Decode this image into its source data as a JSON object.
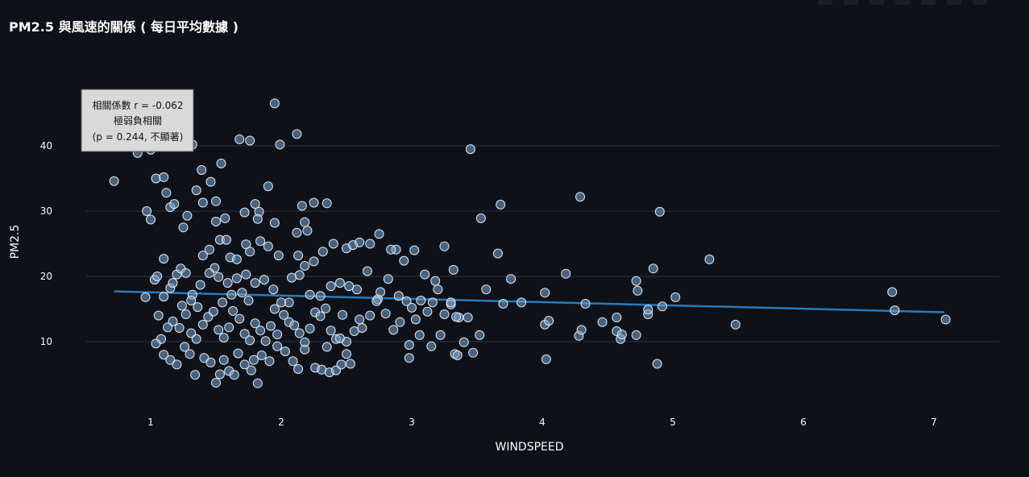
{
  "chart_data": {
    "type": "scatter",
    "title": "PM2.5 與風速的關係 ( 每日平均數據 )",
    "xlabel": "WINDSPEED",
    "ylabel": "PM2.5",
    "xlim": [
      0.7,
      7.35
    ],
    "ylim": [
      1.5,
      49
    ],
    "x_ticks": [
      1,
      2,
      3,
      4,
      5,
      6,
      7
    ],
    "y_ticks": [
      10,
      20,
      30,
      40
    ],
    "grid": "horizontal",
    "annotation": {
      "lines": [
        "相關係數 r = -0.062",
        "極弱負相關",
        "(p = 0.244, 不顯著)"
      ],
      "position": "top-left"
    },
    "trendline": {
      "x": [
        0.72,
        7.08
      ],
      "y": [
        17.7,
        14.5
      ]
    },
    "points": [
      [
        0.72,
        34.6
      ],
      [
        0.97,
        30.0
      ],
      [
        1.0,
        28.7
      ],
      [
        1.04,
        35.0
      ],
      [
        1.1,
        35.2
      ],
      [
        1.0,
        39.4
      ],
      [
        0.9,
        38.9
      ],
      [
        1.15,
        30.6
      ],
      [
        1.12,
        32.8
      ],
      [
        1.18,
        31.1
      ],
      [
        1.25,
        27.5
      ],
      [
        1.28,
        29.3
      ],
      [
        1.35,
        33.2
      ],
      [
        1.39,
        36.3
      ],
      [
        1.46,
        34.5
      ],
      [
        1.54,
        37.3
      ],
      [
        1.5,
        31.5
      ],
      [
        1.4,
        31.3
      ],
      [
        1.32,
        40.2
      ],
      [
        1.68,
        41.0
      ],
      [
        1.76,
        40.8
      ],
      [
        1.9,
        33.8
      ],
      [
        1.95,
        46.5
      ],
      [
        1.99,
        40.2
      ],
      [
        2.12,
        41.8
      ],
      [
        2.16,
        30.8
      ],
      [
        2.25,
        31.3
      ],
      [
        2.35,
        31.2
      ],
      [
        1.8,
        31.1
      ],
      [
        1.83,
        29.9
      ],
      [
        1.72,
        29.8
      ],
      [
        1.82,
        28.8
      ],
      [
        1.5,
        28.4
      ],
      [
        1.57,
        28.9
      ],
      [
        1.95,
        28.2
      ],
      [
        2.18,
        28.3
      ],
      [
        2.2,
        27.0
      ],
      [
        2.12,
        26.7
      ],
      [
        1.1,
        22.7
      ],
      [
        1.03,
        19.5
      ],
      [
        0.96,
        16.8
      ],
      [
        1.06,
        14.0
      ],
      [
        1.1,
        16.9
      ],
      [
        1.15,
        18.2
      ],
      [
        1.17,
        19.0
      ],
      [
        1.2,
        20.3
      ],
      [
        1.23,
        21.2
      ],
      [
        1.27,
        20.5
      ],
      [
        1.32,
        17.2
      ],
      [
        1.36,
        15.3
      ],
      [
        1.4,
        23.2
      ],
      [
        1.45,
        24.1
      ],
      [
        1.49,
        21.3
      ],
      [
        1.53,
        25.6
      ],
      [
        1.58,
        25.6
      ],
      [
        1.61,
        22.9
      ],
      [
        1.66,
        22.6
      ],
      [
        1.73,
        24.9
      ],
      [
        1.76,
        23.8
      ],
      [
        1.84,
        25.4
      ],
      [
        1.9,
        24.6
      ],
      [
        1.98,
        23.2
      ],
      [
        2.06,
        16.0
      ],
      [
        2.13,
        23.2
      ],
      [
        2.18,
        21.6
      ],
      [
        2.25,
        22.3
      ],
      [
        2.32,
        23.8
      ],
      [
        2.4,
        25.0
      ],
      [
        2.5,
        24.3
      ],
      [
        2.55,
        24.8
      ],
      [
        2.6,
        25.2
      ],
      [
        2.68,
        25.0
      ],
      [
        2.75,
        26.5
      ],
      [
        2.66,
        20.8
      ],
      [
        2.58,
        18.0
      ],
      [
        2.52,
        18.5
      ],
      [
        2.45,
        19.0
      ],
      [
        2.38,
        18.5
      ],
      [
        2.3,
        17.0
      ],
      [
        2.22,
        17.2
      ],
      [
        2.14,
        20.2
      ],
      [
        2.08,
        19.8
      ],
      [
        2.0,
        16.0
      ],
      [
        1.94,
        18.0
      ],
      [
        1.87,
        19.5
      ],
      [
        1.8,
        19.0
      ],
      [
        1.73,
        20.3
      ],
      [
        1.66,
        19.7
      ],
      [
        1.59,
        19.0
      ],
      [
        1.52,
        19.9
      ],
      [
        1.45,
        20.5
      ],
      [
        1.38,
        18.7
      ],
      [
        1.31,
        16.3
      ],
      [
        1.24,
        15.5
      ],
      [
        1.17,
        13.1
      ],
      [
        1.13,
        12.2
      ],
      [
        1.08,
        10.4
      ],
      [
        1.04,
        9.7
      ],
      [
        1.1,
        8.0
      ],
      [
        1.15,
        7.2
      ],
      [
        1.2,
        6.5
      ],
      [
        1.26,
        9.2
      ],
      [
        1.3,
        8.1
      ],
      [
        1.34,
        4.9
      ],
      [
        1.41,
        7.5
      ],
      [
        1.46,
        6.8
      ],
      [
        1.5,
        3.7
      ],
      [
        1.53,
        5.0
      ],
      [
        1.56,
        7.2
      ],
      [
        1.6,
        5.5
      ],
      [
        1.64,
        4.9
      ],
      [
        1.67,
        8.2
      ],
      [
        1.72,
        6.5
      ],
      [
        1.77,
        5.6
      ],
      [
        1.79,
        7.2
      ],
      [
        1.82,
        3.6
      ],
      [
        1.85,
        7.9
      ],
      [
        1.91,
        7.0
      ],
      [
        1.97,
        9.3
      ],
      [
        2.03,
        8.5
      ],
      [
        2.09,
        7.0
      ],
      [
        2.13,
        5.8
      ],
      [
        2.18,
        8.8
      ],
      [
        2.26,
        6.0
      ],
      [
        2.31,
        5.7
      ],
      [
        2.37,
        5.3
      ],
      [
        2.42,
        5.6
      ],
      [
        2.46,
        6.5
      ],
      [
        2.5,
        8.1
      ],
      [
        2.53,
        6.6
      ],
      [
        1.22,
        12.1
      ],
      [
        1.27,
        14.2
      ],
      [
        1.31,
        11.3
      ],
      [
        1.35,
        10.4
      ],
      [
        1.4,
        12.6
      ],
      [
        1.44,
        13.8
      ],
      [
        1.48,
        14.6
      ],
      [
        1.52,
        11.8
      ],
      [
        1.56,
        10.6
      ],
      [
        1.6,
        12.2
      ],
      [
        1.63,
        14.7
      ],
      [
        1.68,
        13.5
      ],
      [
        1.72,
        11.2
      ],
      [
        1.76,
        10.2
      ],
      [
        1.8,
        12.8
      ],
      [
        1.84,
        11.7
      ],
      [
        1.88,
        10.1
      ],
      [
        1.92,
        12.4
      ],
      [
        1.97,
        11.1
      ],
      [
        2.02,
        14.1
      ],
      [
        2.06,
        13.0
      ],
      [
        2.1,
        12.5
      ],
      [
        2.14,
        11.3
      ],
      [
        2.18,
        9.9
      ],
      [
        2.22,
        12.0
      ],
      [
        2.26,
        14.5
      ],
      [
        2.3,
        13.9
      ],
      [
        2.34,
        15.1
      ],
      [
        2.38,
        11.7
      ],
      [
        2.42,
        10.4
      ],
      [
        2.47,
        14.1
      ],
      [
        2.5,
        10.0
      ],
      [
        2.56,
        11.6
      ],
      [
        2.6,
        13.4
      ],
      [
        2.62,
        12.1
      ],
      [
        2.68,
        14.0
      ],
      [
        2.74,
        16.5
      ],
      [
        2.8,
        14.3
      ],
      [
        2.86,
        11.8
      ],
      [
        2.91,
        13.0
      ],
      [
        2.96,
        16.2
      ],
      [
        3.0,
        15.2
      ],
      [
        3.03,
        13.4
      ],
      [
        3.07,
        16.3
      ],
      [
        3.12,
        14.6
      ],
      [
        3.16,
        16.0
      ],
      [
        3.2,
        18.0
      ],
      [
        3.25,
        14.2
      ],
      [
        3.3,
        15.7
      ],
      [
        3.36,
        13.7
      ],
      [
        3.4,
        9.9
      ],
      [
        3.43,
        13.7
      ],
      [
        3.47,
        8.3
      ],
      [
        3.52,
        11.0
      ],
      [
        3.57,
        18.0
      ],
      [
        3.66,
        23.5
      ],
      [
        3.7,
        15.8
      ],
      [
        3.76,
        19.6
      ],
      [
        3.84,
        16.0
      ],
      [
        3.45,
        39.5
      ],
      [
        3.53,
        28.9
      ],
      [
        3.68,
        31.0
      ],
      [
        2.88,
        24.1
      ],
      [
        2.94,
        22.4
      ],
      [
        3.02,
        24.0
      ],
      [
        3.1,
        20.3
      ],
      [
        3.18,
        19.3
      ],
      [
        3.25,
        24.6
      ],
      [
        3.32,
        21.0
      ],
      [
        3.3,
        16.0
      ],
      [
        3.34,
        13.8
      ],
      [
        3.22,
        11.0
      ],
      [
        3.15,
        9.3
      ],
      [
        3.06,
        11.0
      ],
      [
        2.98,
        9.5
      ],
      [
        2.98,
        7.5
      ],
      [
        3.33,
        8.1
      ],
      [
        3.35,
        7.9
      ],
      [
        2.82,
        19.6
      ],
      [
        2.9,
        17.0
      ],
      [
        2.76,
        17.6
      ],
      [
        2.84,
        24.1
      ],
      [
        2.73,
        16.2
      ],
      [
        4.02,
        17.5
      ],
      [
        4.02,
        12.6
      ],
      [
        4.05,
        13.2
      ],
      [
        4.03,
        7.3
      ],
      [
        4.18,
        20.4
      ],
      [
        4.29,
        32.2
      ],
      [
        4.28,
        10.9
      ],
      [
        4.3,
        11.8
      ],
      [
        4.33,
        15.8
      ],
      [
        4.46,
        13.0
      ],
      [
        4.57,
        13.7
      ],
      [
        4.57,
        11.6
      ],
      [
        4.6,
        10.4
      ],
      [
        4.61,
        11.1
      ],
      [
        4.72,
        19.3
      ],
      [
        4.73,
        17.8
      ],
      [
        4.72,
        11.0
      ],
      [
        4.81,
        14.2
      ],
      [
        4.81,
        14.9
      ],
      [
        4.85,
        21.2
      ],
      [
        4.88,
        6.6
      ],
      [
        4.9,
        29.9
      ],
      [
        4.92,
        15.4
      ],
      [
        5.02,
        16.8
      ],
      [
        5.28,
        22.6
      ],
      [
        5.48,
        12.6
      ],
      [
        6.68,
        17.6
      ],
      [
        6.7,
        14.8
      ],
      [
        7.09,
        13.4
      ],
      [
        1.05,
        20.0
      ],
      [
        1.55,
        16.0
      ],
      [
        1.62,
        17.2
      ],
      [
        1.7,
        17.5
      ],
      [
        2.35,
        9.2
      ],
      [
        2.45,
        10.5
      ],
      [
        1.95,
        15.0
      ],
      [
        1.75,
        16.3
      ]
    ]
  }
}
